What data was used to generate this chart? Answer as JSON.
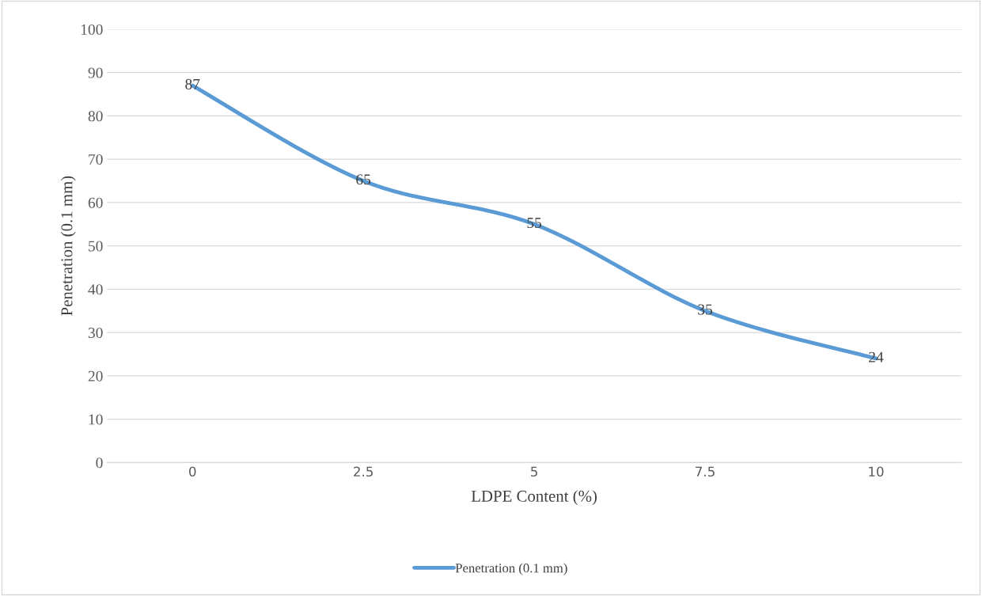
{
  "chart_data": {
    "type": "line",
    "xlabel": "LDPE Content (%)",
    "ylabel": "Penetration (0.1 mm)",
    "categories": [
      "0",
      "2.5",
      "5",
      "7.5",
      "10"
    ],
    "series": [
      {
        "name": "Penetration (0.1 mm)",
        "color": "#5b9bd5",
        "values": [
          87,
          65,
          55,
          35,
          24
        ]
      }
    ],
    "ylim": [
      0,
      100
    ],
    "yticks": [
      0,
      10,
      20,
      30,
      40,
      50,
      60,
      70,
      80,
      90,
      100
    ],
    "grid": "y",
    "legend": "bottom",
    "data_labels": true,
    "marker": "none",
    "line_style": "solid"
  }
}
